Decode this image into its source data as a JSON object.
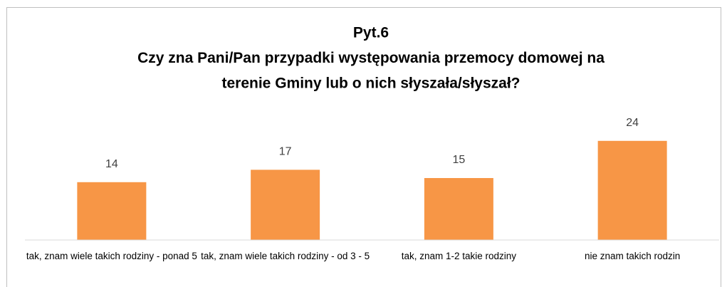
{
  "chart_data": {
    "type": "bar",
    "title": [
      "Pyt.6",
      "Czy zna Pani/Pan przypadki występowania przemocy domowej na",
      "terenie Gminy lub o nich słyszała/słyszał?"
    ],
    "categories": [
      "tak, znam wiele takich rodziny - ponad 5",
      "tak, znam wiele takich rodziny - od 3 - 5",
      "tak, znam 1-2 takie rodziny",
      "nie znam takich rodzin"
    ],
    "values": [
      14,
      17,
      15,
      24
    ],
    "color": "#f79646",
    "ylim": [
      0,
      30
    ]
  }
}
